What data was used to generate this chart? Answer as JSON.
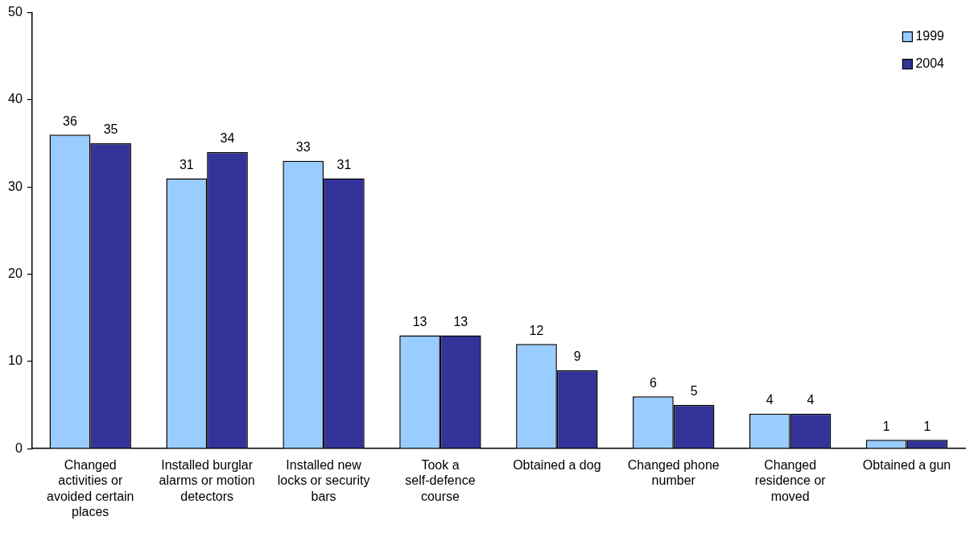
{
  "chart_data": {
    "type": "bar",
    "categories": [
      "Changed activities or avoided certain places",
      "Installed burglar alarms or motion detectors",
      "Installed new locks or security bars",
      "Took a self-defence course",
      "Obtained a dog",
      "Changed phone number",
      "Changed residence or moved",
      "Obtained a gun"
    ],
    "series": [
      {
        "name": "1999",
        "color": "#99ccff",
        "values": [
          36,
          31,
          33,
          13,
          12,
          6,
          4,
          1
        ]
      },
      {
        "name": "2004",
        "color": "#333399",
        "values": [
          35,
          34,
          31,
          13,
          9,
          5,
          4,
          1
        ]
      }
    ],
    "ylim": [
      0,
      50
    ],
    "yticks": [
      0,
      10,
      20,
      30,
      40,
      50
    ],
    "data_labels": true,
    "legend": "top right",
    "grid": false
  }
}
